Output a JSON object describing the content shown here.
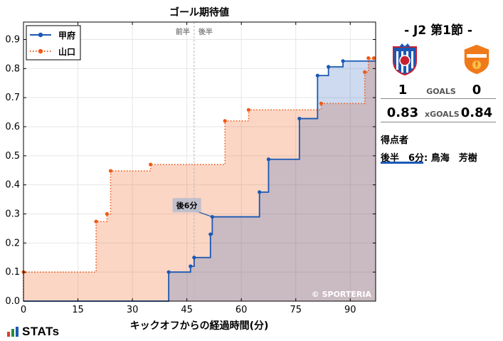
{
  "chart_data": {
    "type": "line",
    "title": "ゴール期待値",
    "xlabel": "キックオフからの経過時間(分)",
    "ylabel": "",
    "xlim": [
      0,
      97
    ],
    "ylim": [
      0,
      0.96
    ],
    "xticks": [
      0,
      15,
      30,
      45,
      60,
      75,
      90
    ],
    "yticks": [
      0.0,
      0.1,
      0.2,
      0.3,
      0.4,
      0.5,
      0.6,
      0.7,
      0.8,
      0.9
    ],
    "half_labels": [
      "前半",
      "後半"
    ],
    "half_time_minute": 47,
    "grid": true,
    "legend_position": "top-left",
    "annotation": "後6分",
    "annotation_at": {
      "x": 52,
      "y": 0.29
    },
    "watermark": "© SPORTERIA",
    "series": [
      {
        "name": "甲府",
        "color": "#1a58b4",
        "line_style": "solid",
        "points": [
          [
            0,
            0
          ],
          [
            40,
            0
          ],
          [
            40,
            0.1
          ],
          [
            46,
            0.1
          ],
          [
            46,
            0.12
          ],
          [
            47,
            0.12
          ],
          [
            47,
            0.15
          ],
          [
            51.5,
            0.15
          ],
          [
            51.5,
            0.23
          ],
          [
            52,
            0.23
          ],
          [
            52,
            0.29
          ],
          [
            65,
            0.29
          ],
          [
            65,
            0.375
          ],
          [
            67.5,
            0.375
          ],
          [
            67.5,
            0.488
          ],
          [
            76,
            0.488
          ],
          [
            76,
            0.628
          ],
          [
            81,
            0.628
          ],
          [
            81,
            0.776
          ],
          [
            84,
            0.776
          ],
          [
            84,
            0.806
          ],
          [
            88,
            0.806
          ],
          [
            88,
            0.826
          ],
          [
            97,
            0.826
          ]
        ],
        "markers": [
          [
            40,
            0.1
          ],
          [
            46,
            0.12
          ],
          [
            47,
            0.15
          ],
          [
            51.5,
            0.23
          ],
          [
            52,
            0.29
          ],
          [
            65,
            0.375
          ],
          [
            67.5,
            0.488
          ],
          [
            76,
            0.628
          ],
          [
            81,
            0.776
          ],
          [
            84,
            0.806
          ],
          [
            88,
            0.826
          ]
        ]
      },
      {
        "name": "山口",
        "color": "#f05a18",
        "line_style": "dotted",
        "points": [
          [
            0,
            0
          ],
          [
            0,
            0.1
          ],
          [
            20,
            0.1
          ],
          [
            20,
            0.274
          ],
          [
            23,
            0.274
          ],
          [
            23,
            0.3
          ],
          [
            24,
            0.3
          ],
          [
            24,
            0.448
          ],
          [
            35,
            0.448
          ],
          [
            35,
            0.47
          ],
          [
            55.5,
            0.47
          ],
          [
            55.5,
            0.62
          ],
          [
            62,
            0.62
          ],
          [
            62,
            0.658
          ],
          [
            82,
            0.658
          ],
          [
            82,
            0.68
          ],
          [
            94,
            0.68
          ],
          [
            94,
            0.788
          ],
          [
            95,
            0.788
          ],
          [
            95,
            0.836
          ],
          [
            97,
            0.836
          ]
        ],
        "markers": [
          [
            0,
            0.1
          ],
          [
            20,
            0.274
          ],
          [
            23,
            0.3
          ],
          [
            24,
            0.448
          ],
          [
            35,
            0.47
          ],
          [
            55.5,
            0.62
          ],
          [
            62,
            0.658
          ],
          [
            82,
            0.68
          ],
          [
            94,
            0.788
          ],
          [
            95,
            0.836
          ],
          [
            96.5,
            0.836
          ]
        ]
      }
    ]
  },
  "panel": {
    "match_title": "- J2 第1節 -",
    "home_score": "1",
    "away_score": "0",
    "goals_label": "GOALS",
    "home_xg": "0.83",
    "away_xg": "0.84",
    "xg_label": "xGOALS",
    "scorers_title": "得点者",
    "scorer_entry": "後半　6分: 鳥海　芳樹",
    "home_crest_text": "VENTFORET KOFU",
    "away_crest_text": "RENOFA YAMAGUCHI"
  },
  "brand": {
    "logo_text": "STATs",
    "bar_colors": [
      "#e53b2c",
      "#2a8a3e",
      "#1a58b4"
    ]
  }
}
